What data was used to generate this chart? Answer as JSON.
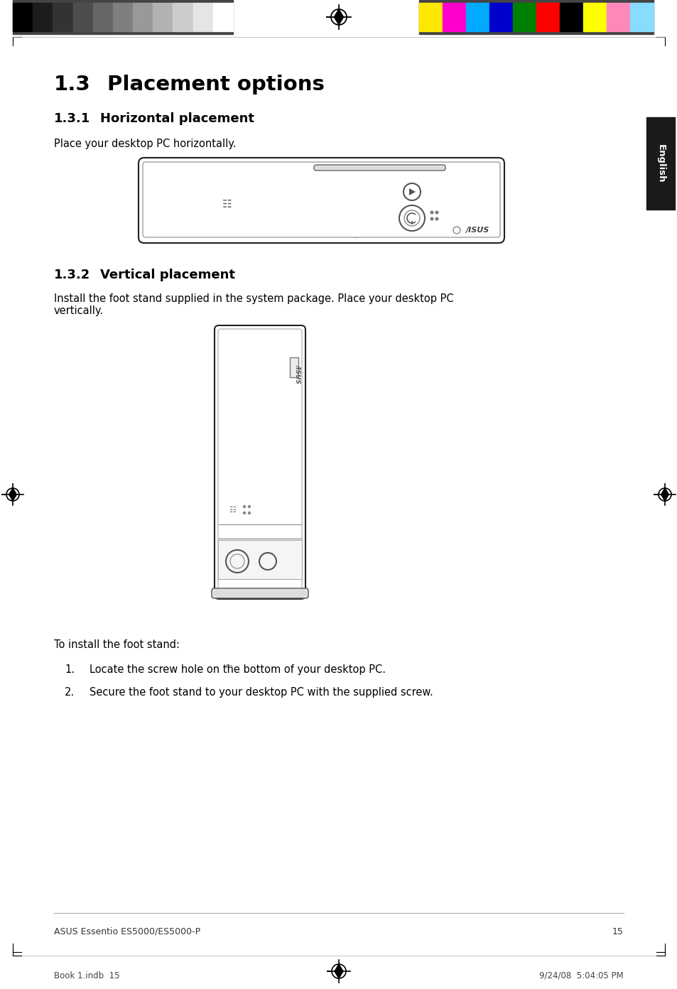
{
  "title_main_num": "1.3",
  "title_main_text": "Placement options",
  "section1_num": "1.3.1",
  "section1_text": "Horizontal placement",
  "section1_body": "Place your desktop PC horizontally.",
  "section2_num": "1.3.2",
  "section2_text": "Vertical placement",
  "section2_body": "Install the foot stand supplied in the system package. Place your desktop PC\nvertically.",
  "footer_text_left": "ASUS Essentio ES5000/ES5000-P",
  "footer_page": "15",
  "bottom_left": "Book 1.indb  15",
  "bottom_right": "9/24/08  5:04:05 PM",
  "sidebar_text": "English",
  "install_text": "To install the foot stand:",
  "list_items": [
    "Locate the screw hole on the bottom of your desktop PC.",
    "Secure the foot stand to your desktop PC with the supplied screw."
  ],
  "bg_color": "#ffffff",
  "text_color": "#000000",
  "sidebar_bg": "#1a1a1a",
  "sidebar_text_color": "#ffffff",
  "gray_swatches": [
    "#000000",
    "#1c1c1c",
    "#333333",
    "#4d4d4d",
    "#666666",
    "#7f7f7f",
    "#999999",
    "#b2b2b2",
    "#cccccc",
    "#e5e5e5",
    "#ffffff"
  ],
  "color_swatches": [
    "#ffe800",
    "#ff00cc",
    "#00aaff",
    "#0000cc",
    "#008000",
    "#ff0000",
    "#000000",
    "#ffff00",
    "#ff88bb",
    "#88ddff"
  ],
  "swatch_border": "#555555"
}
